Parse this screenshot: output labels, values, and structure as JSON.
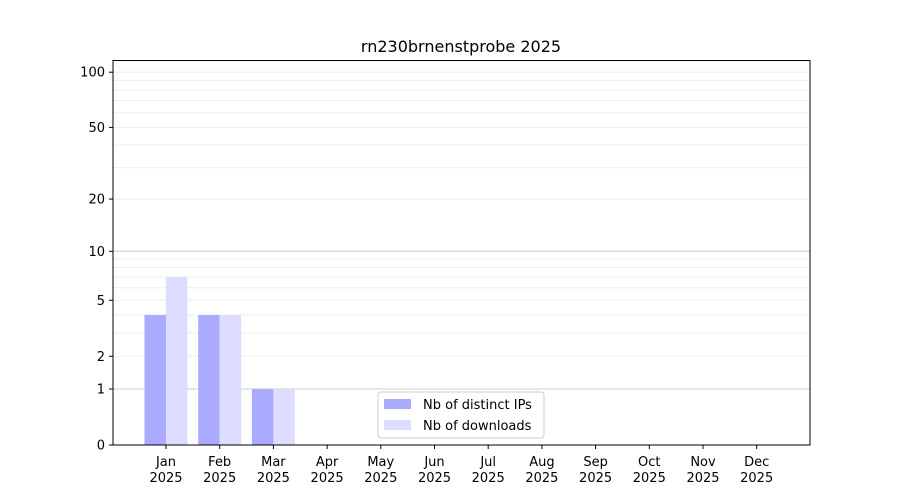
{
  "chart_data": {
    "type": "bar",
    "title": "rn230brnenstprobe 2025",
    "xlabel": "",
    "ylabel": "",
    "y_scale": "log(1+y)",
    "ylim": [
      0,
      116
    ],
    "y_ticks": [
      0,
      1,
      2,
      5,
      10,
      20,
      50,
      100
    ],
    "grid": true,
    "legend_position": "bottom-center",
    "categories": [
      "Jan\n2025",
      "Feb\n2025",
      "Mar\n2025",
      "Apr\n2025",
      "May\n2025",
      "Jun\n2025",
      "Jul\n2025",
      "Aug\n2025",
      "Sep\n2025",
      "Oct\n2025",
      "Nov\n2025",
      "Dec\n2025"
    ],
    "series": [
      {
        "name": "Nb of distinct IPs",
        "color": "#aaaaff",
        "values": [
          4,
          4,
          1,
          0,
          0,
          0,
          0,
          0,
          0,
          0,
          0,
          0
        ]
      },
      {
        "name": "Nb of downloads",
        "color": "#ddddff",
        "values": [
          7,
          4,
          1,
          0,
          0,
          0,
          0,
          0,
          0,
          0,
          0,
          0
        ]
      }
    ]
  }
}
